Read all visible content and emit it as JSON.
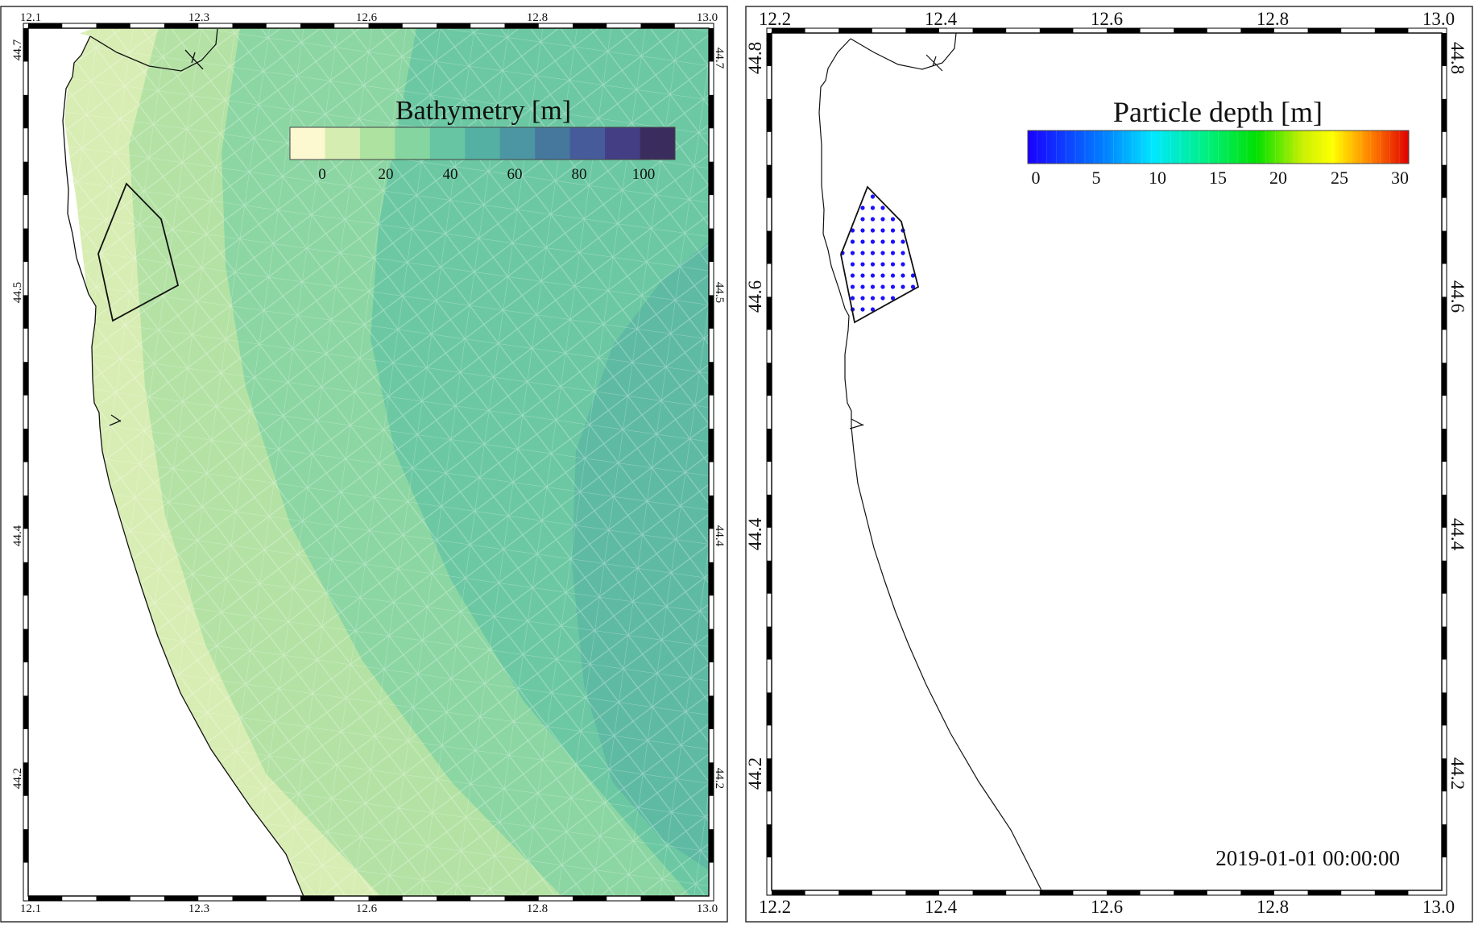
{
  "maps": [
    {
      "id": "bathymetry",
      "lon_ticks": [
        "12.1",
        "12.3",
        "12.6",
        "12.8",
        "13.0"
      ],
      "lat_ticks": [
        "44.7",
        "44.5",
        "44.4",
        "44.2"
      ],
      "colorbar": {
        "title": "Bathymetry [m]",
        "labels": [
          "0",
          "20",
          "40",
          "60",
          "80",
          "100"
        ],
        "colors": [
          "#fcf8d0",
          "#d6edb2",
          "#ade2a0",
          "#85d5a1",
          "#67c5a3",
          "#54b0a3",
          "#4b96a2",
          "#46789e",
          "#455b9a",
          "#443f85",
          "#3a2d5e"
        ]
      },
      "band_colors": [
        "#d8edb4",
        "#b4e2a5",
        "#8cd6a3",
        "#6cc8a3",
        "#5fbaa3",
        "#55a9a6"
      ]
    },
    {
      "id": "particles",
      "lon_ticks": [
        "12.2",
        "12.4",
        "12.6",
        "12.8",
        "13.0"
      ],
      "lat_ticks": [
        "44.8",
        "44.6",
        "44.4",
        "44.2"
      ],
      "colorbar": {
        "title": "Particle depth [m]",
        "labels": [
          "0",
          "5",
          "10",
          "15",
          "20",
          "25",
          "30"
        ],
        "colors": [
          "#1a00ff",
          "#0060ff",
          "#00c8ff",
          "#00ffb0",
          "#00e000",
          "#7ee000",
          "#f0ff00",
          "#ffb000",
          "#ff5000",
          "#e00000"
        ]
      },
      "timestamp": "2019-01-01  00:00:00",
      "particle_color": "#1a10ff"
    }
  ]
}
